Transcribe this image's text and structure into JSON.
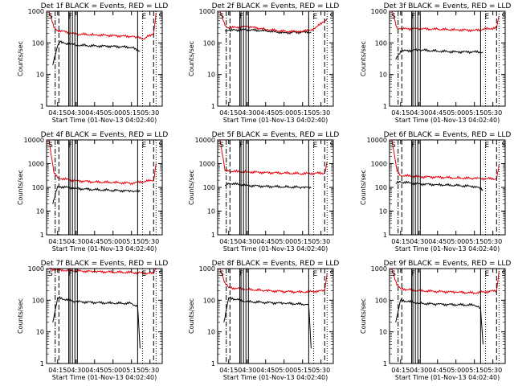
{
  "figure": {
    "panels": [
      {
        "title": "Det 1f BLACK = Events, RED = LLD"
      },
      {
        "title": "Det 2f BLACK = Events, RED = LLD"
      },
      {
        "title": "Det 3f BLACK = Events, RED = LLD"
      },
      {
        "title": "Det 4f BLACK = Events, RED = LLD"
      },
      {
        "title": "Det 5f BLACK = Events, RED = LLD"
      },
      {
        "title": "Det 6f BLACK = Events, RED = LLD"
      },
      {
        "title": "Det 7f BLACK = Events, RED = LLD"
      },
      {
        "title": "Det 8f BLACK = Events, RED = LLD"
      },
      {
        "title": "Det 9f BLACK = Events, RED = LLD"
      }
    ]
  },
  "colors": {
    "events": "#000000",
    "lld": "#e8000b",
    "axes": "#000000",
    "background": "#ffffff"
  },
  "chart_data": [
    {
      "type": "line",
      "title": "Det 1f BLACK = Events, RED = LLD",
      "xlabel": "Start Time (01-Nov-13 04:02:40)",
      "ylabel": "Counts/sec",
      "y_scale": "log",
      "ylim": [
        1,
        1000
      ],
      "xlim": [
        "04:06",
        "05:40"
      ],
      "x_tick_labels": [
        "04:15",
        "04:30",
        "04:45",
        "05:00",
        "05:15",
        "05:30"
      ],
      "y_tick_labels": [
        "1",
        "10",
        "100",
        "1000"
      ],
      "markers": [
        "S",
        "F",
        "E",
        "S"
      ],
      "series": [
        {
          "name": "Events",
          "color": "#000000",
          "x": [
            "04:11",
            "04:15",
            "04:17",
            "04:20",
            "04:30",
            "04:45",
            "05:00",
            "05:15",
            "05:20",
            "05:22"
          ],
          "values": [
            20,
            80,
            110,
            100,
            85,
            80,
            78,
            72,
            62,
            55
          ]
        },
        {
          "name": "LLD",
          "color": "#e8000b",
          "x": [
            "04:08",
            "04:12",
            "04:15",
            "04:30",
            "04:45",
            "05:00",
            "05:15",
            "05:20",
            "05:24",
            "05:33",
            "05:35"
          ],
          "values": [
            1000,
            300,
            250,
            190,
            180,
            170,
            160,
            150,
            130,
            200,
            900
          ]
        }
      ]
    },
    {
      "type": "line",
      "title": "Det 2f BLACK = Events, RED = LLD",
      "xlabel": "Start Time (01-Nov-13 04:02:40)",
      "ylabel": "Counts/sec",
      "y_scale": "log",
      "ylim": [
        1,
        1000
      ],
      "xlim": [
        "04:06",
        "05:40"
      ],
      "x_tick_labels": [
        "04:15",
        "04:30",
        "04:45",
        "05:00",
        "05:15",
        "05:30"
      ],
      "y_tick_labels": [
        "1",
        "10",
        "100",
        "1000"
      ],
      "markers": [
        "S",
        "F",
        "E",
        "S"
      ],
      "series": [
        {
          "name": "Events",
          "color": "#000000",
          "x": [
            "04:12",
            "04:15",
            "04:30",
            "04:45",
            "05:00",
            "05:15",
            "05:22"
          ],
          "values": [
            250,
            250,
            260,
            240,
            210,
            220,
            220
          ]
        },
        {
          "name": "LLD",
          "color": "#e8000b",
          "x": [
            "04:08",
            "04:12",
            "04:15",
            "04:30",
            "04:45",
            "05:00",
            "05:15",
            "05:25",
            "05:35"
          ],
          "values": [
            1000,
            350,
            300,
            330,
            270,
            230,
            230,
            280,
            600
          ]
        }
      ]
    },
    {
      "type": "line",
      "title": "Det 3f BLACK = Events, RED = LLD",
      "xlabel": "Start Time (01-Nov-13 04:02:40)",
      "ylabel": "Counts/sec",
      "y_scale": "log",
      "ylim": [
        1,
        1000
      ],
      "xlim": [
        "04:06",
        "05:40"
      ],
      "x_tick_labels": [
        "04:15",
        "04:30",
        "04:45",
        "05:00",
        "05:15",
        "05:30"
      ],
      "y_tick_labels": [
        "1",
        "10",
        "100",
        "1000"
      ],
      "markers": [
        "S",
        "F",
        "E",
        "S"
      ],
      "series": [
        {
          "name": "Events",
          "color": "#000000",
          "x": [
            "04:11",
            "04:15",
            "04:30",
            "04:45",
            "05:00",
            "05:15",
            "05:22"
          ],
          "values": [
            30,
            55,
            60,
            55,
            52,
            52,
            50
          ]
        },
        {
          "name": "LLD",
          "color": "#e8000b",
          "x": [
            "04:08",
            "04:12",
            "04:15",
            "04:30",
            "04:45",
            "05:00",
            "05:15",
            "05:33",
            "05:35"
          ],
          "values": [
            1000,
            300,
            280,
            280,
            270,
            260,
            250,
            300,
            700
          ]
        }
      ]
    },
    {
      "type": "line",
      "title": "Det 4f BLACK = Events, RED = LLD",
      "xlabel": "Start Time (01-Nov-13 04:02:40)",
      "ylabel": "Counts/sec",
      "y_scale": "log",
      "ylim": [
        1,
        10000
      ],
      "xlim": [
        "04:06",
        "05:40"
      ],
      "x_tick_labels": [
        "04:15",
        "04:30",
        "04:45",
        "05:00",
        "05:15",
        "05:30"
      ],
      "y_tick_labels": [
        "1",
        "10",
        "100",
        "1000",
        "10000"
      ],
      "markers": [
        "S",
        "F",
        "E",
        "S"
      ],
      "series": [
        {
          "name": "Events",
          "color": "#000000",
          "x": [
            "04:11",
            "04:15",
            "04:30",
            "04:45",
            "05:00",
            "05:15",
            "05:22"
          ],
          "values": [
            20,
            110,
            90,
            80,
            75,
            70,
            65
          ]
        },
        {
          "name": "LLD",
          "color": "#e8000b",
          "x": [
            "04:08",
            "04:12",
            "04:15",
            "04:30",
            "04:45",
            "05:00",
            "05:15",
            "05:33",
            "05:35"
          ],
          "values": [
            10000,
            400,
            250,
            190,
            170,
            160,
            150,
            200,
            1000
          ]
        }
      ]
    },
    {
      "type": "line",
      "title": "Det 5f BLACK = Events, RED = LLD",
      "xlabel": "Start Time (01-Nov-13 04:02:40)",
      "ylabel": "Counts/sec",
      "y_scale": "log",
      "ylim": [
        1,
        10000
      ],
      "xlim": [
        "04:06",
        "05:40"
      ],
      "x_tick_labels": [
        "04:15",
        "04:30",
        "04:45",
        "05:00",
        "05:15",
        "05:30"
      ],
      "y_tick_labels": [
        "1",
        "10",
        "100",
        "1000",
        "10000"
      ],
      "markers": [
        "S",
        "F",
        "E",
        "S"
      ],
      "series": [
        {
          "name": "Events",
          "color": "#000000",
          "x": [
            "04:12",
            "04:15",
            "04:30",
            "04:45",
            "05:00",
            "05:15",
            "05:22"
          ],
          "values": [
            120,
            150,
            120,
            110,
            105,
            100,
            95
          ]
        },
        {
          "name": "LLD",
          "color": "#e8000b",
          "x": [
            "04:08",
            "04:12",
            "04:15",
            "04:30",
            "04:45",
            "05:00",
            "05:15",
            "05:33",
            "05:35"
          ],
          "values": [
            10000,
            500,
            480,
            450,
            420,
            400,
            380,
            400,
            1200
          ]
        }
      ]
    },
    {
      "type": "line",
      "title": "Det 6f BLACK = Events, RED = LLD",
      "xlabel": "Start Time (01-Nov-13 04:02:40)",
      "ylabel": "Counts/sec",
      "y_scale": "log",
      "ylim": [
        1,
        10000
      ],
      "xlim": [
        "04:06",
        "05:40"
      ],
      "x_tick_labels": [
        "04:15",
        "04:30",
        "04:45",
        "05:00",
        "05:15",
        "05:30"
      ],
      "y_tick_labels": [
        "1",
        "10",
        "100",
        "1000",
        "10000"
      ],
      "markers": [
        "S",
        "F",
        "E",
        "S"
      ],
      "series": [
        {
          "name": "Events",
          "color": "#000000",
          "x": [
            "04:11",
            "04:15",
            "04:30",
            "04:45",
            "05:00",
            "05:15",
            "05:22"
          ],
          "values": [
            150,
            170,
            140,
            130,
            120,
            110,
            80
          ]
        },
        {
          "name": "LLD",
          "color": "#e8000b",
          "x": [
            "04:08",
            "04:12",
            "04:15",
            "04:30",
            "04:45",
            "05:00",
            "05:15",
            "05:33",
            "05:35"
          ],
          "values": [
            10000,
            500,
            320,
            280,
            270,
            250,
            240,
            230,
            900
          ]
        }
      ]
    },
    {
      "type": "line",
      "title": "Det 7f BLACK = Events, RED = LLD",
      "xlabel": "Start Time (01-Nov-13 04:02:40)",
      "ylabel": "Counts/sec",
      "y_scale": "log",
      "ylim": [
        1,
        1000
      ],
      "xlim": [
        "04:06",
        "05:40"
      ],
      "x_tick_labels": [
        "04:15",
        "04:30",
        "04:45",
        "05:00",
        "05:15",
        "05:30"
      ],
      "y_tick_labels": [
        "1",
        "10",
        "100",
        "1000"
      ],
      "markers": [
        "S",
        "F",
        "E",
        "S"
      ],
      "series": [
        {
          "name": "Events",
          "color": "#000000",
          "x": [
            "04:11",
            "04:15",
            "04:30",
            "04:45",
            "05:00",
            "05:15",
            "05:20",
            "05:22"
          ],
          "values": [
            20,
            120,
            90,
            85,
            80,
            80,
            60,
            3
          ]
        },
        {
          "name": "LLD",
          "color": "#e8000b",
          "x": [
            "04:08",
            "04:15",
            "04:30",
            "04:45",
            "05:00",
            "05:15",
            "05:33",
            "05:35"
          ],
          "values": [
            1000,
            900,
            850,
            800,
            780,
            750,
            700,
            1000
          ]
        }
      ]
    },
    {
      "type": "line",
      "title": "Det 8f BLACK = Events, RED = LLD",
      "xlabel": "Start Time (01-Nov-13 04:02:40)",
      "ylabel": "Counts/sec",
      "y_scale": "log",
      "ylim": [
        1,
        1000
      ],
      "xlim": [
        "04:06",
        "05:40"
      ],
      "x_tick_labels": [
        "04:15",
        "04:30",
        "04:45",
        "05:00",
        "05:15",
        "05:30"
      ],
      "y_tick_labels": [
        "1",
        "10",
        "100",
        "1000"
      ],
      "markers": [
        "S",
        "F",
        "E",
        "S"
      ],
      "series": [
        {
          "name": "Events",
          "color": "#000000",
          "x": [
            "04:11",
            "04:15",
            "04:30",
            "04:45",
            "05:00",
            "05:15",
            "05:20",
            "05:22"
          ],
          "values": [
            20,
            120,
            90,
            85,
            80,
            75,
            70,
            3
          ]
        },
        {
          "name": "LLD",
          "color": "#e8000b",
          "x": [
            "04:08",
            "04:12",
            "04:15",
            "04:30",
            "04:45",
            "05:00",
            "05:15",
            "05:33",
            "05:35"
          ],
          "values": [
            1000,
            350,
            250,
            220,
            200,
            190,
            180,
            200,
            700
          ]
        }
      ]
    },
    {
      "type": "line",
      "title": "Det 9f BLACK = Events, RED = LLD",
      "xlabel": "Start Time (01-Nov-13 04:02:40)",
      "ylabel": "Counts/sec",
      "y_scale": "log",
      "ylim": [
        1,
        1000
      ],
      "xlim": [
        "04:06",
        "05:40"
      ],
      "x_tick_labels": [
        "04:15",
        "04:30",
        "04:45",
        "05:00",
        "05:15",
        "05:30"
      ],
      "y_tick_labels": [
        "1",
        "10",
        "100",
        "1000"
      ],
      "markers": [
        "S",
        "F",
        "E",
        "S"
      ],
      "series": [
        {
          "name": "Events",
          "color": "#000000",
          "x": [
            "04:11",
            "04:15",
            "04:30",
            "04:45",
            "05:00",
            "05:15",
            "05:20",
            "05:22"
          ],
          "values": [
            20,
            100,
            80,
            75,
            72,
            70,
            55,
            4
          ]
        },
        {
          "name": "LLD",
          "color": "#e8000b",
          "x": [
            "04:08",
            "04:12",
            "04:15",
            "04:30",
            "04:45",
            "05:00",
            "05:15",
            "05:33",
            "05:35"
          ],
          "values": [
            1000,
            300,
            230,
            200,
            190,
            180,
            170,
            200,
            800
          ]
        }
      ]
    }
  ]
}
